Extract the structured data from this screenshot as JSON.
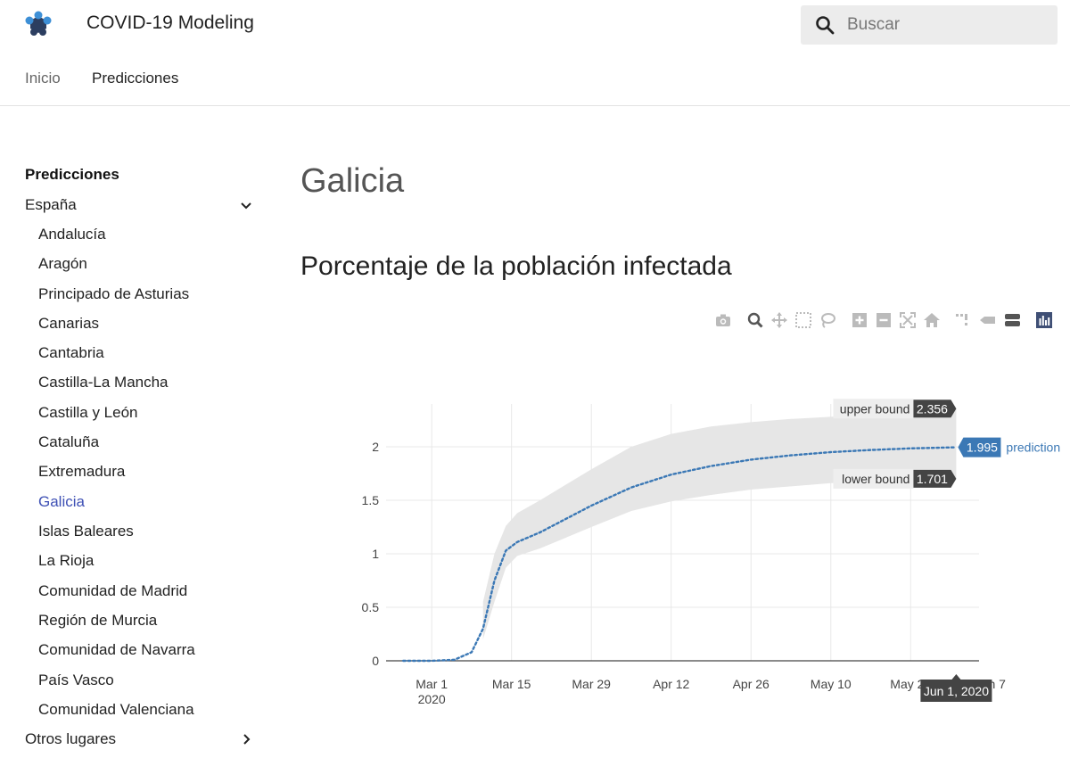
{
  "header": {
    "title": "COVID-19 Modeling",
    "search_placeholder": "Buscar",
    "tabs": [
      "Inicio",
      "Predicciones"
    ]
  },
  "sidebar": {
    "heading": "Predicciones",
    "spain": "España",
    "regions": [
      "Andalucía",
      "Aragón",
      "Principado de Asturias",
      "Canarias",
      "Cantabria",
      "Castilla-La Mancha",
      "Castilla y León",
      "Cataluña",
      "Extremadura",
      "Galicia",
      "Islas Baleares",
      "La Rioja",
      "Comunidad de Madrid",
      "Región de Murcia",
      "Comunidad de Navarra",
      "País Vasco",
      "Comunidad Valenciana"
    ],
    "active": "Galicia",
    "other": "Otros lugares"
  },
  "main": {
    "title": "Galicia",
    "section_title": "Porcentaje de la población infectada"
  },
  "modebar": {
    "buttons": [
      "camera-icon",
      "zoom-icon",
      "pan-icon",
      "box-select-icon",
      "lasso-icon",
      "zoom-in-icon",
      "zoom-out-icon",
      "autoscale-icon",
      "reset-axes-icon",
      "spike-lines-icon",
      "hover-closest-icon",
      "hover-compare-icon",
      "plotly-logo-icon"
    ]
  },
  "colors": {
    "accent": "#3f51b5",
    "prediction": "#3b78b5",
    "band": "#e6e6e6",
    "tooltip_dark": "#444444"
  },
  "chart_data": {
    "type": "line",
    "y_ticks": [
      "0",
      "0.5",
      "1",
      "1.5",
      "2"
    ],
    "x_ticks": [
      "Mar 1\n2020",
      "Mar 15",
      "Mar 29",
      "Apr 12",
      "Apr 26",
      "May 10",
      "May 24",
      "Jun 7"
    ],
    "x_range": [
      "2020-02-22",
      "2020-06-05"
    ],
    "ylim": [
      0,
      2.4
    ],
    "series": [
      {
        "name": "prediction",
        "style": "dotted",
        "x": [
          "2020-02-25",
          "2020-03-01",
          "2020-03-05",
          "2020-03-08",
          "2020-03-10",
          "2020-03-12",
          "2020-03-14",
          "2020-03-16",
          "2020-03-20",
          "2020-03-29",
          "2020-04-05",
          "2020-04-12",
          "2020-04-19",
          "2020-04-26",
          "2020-05-03",
          "2020-05-10",
          "2020-05-17",
          "2020-05-24",
          "2020-06-01"
        ],
        "y": [
          0,
          0,
          0.01,
          0.08,
          0.3,
          0.75,
          1.03,
          1.11,
          1.2,
          1.45,
          1.62,
          1.74,
          1.82,
          1.88,
          1.92,
          1.95,
          1.97,
          1.985,
          1.995
        ]
      },
      {
        "name": "upper bound",
        "x": [
          "2020-03-10",
          "2020-03-12",
          "2020-03-14",
          "2020-03-16",
          "2020-03-20",
          "2020-03-29",
          "2020-04-05",
          "2020-04-12",
          "2020-04-19",
          "2020-04-26",
          "2020-05-03",
          "2020-05-10",
          "2020-05-17",
          "2020-05-24",
          "2020-06-01"
        ],
        "y": [
          0.55,
          1.0,
          1.26,
          1.38,
          1.5,
          1.79,
          2.0,
          2.12,
          2.19,
          2.23,
          2.26,
          2.28,
          2.3,
          2.33,
          2.356
        ]
      },
      {
        "name": "lower bound",
        "x": [
          "2020-03-10",
          "2020-03-12",
          "2020-03-14",
          "2020-03-16",
          "2020-03-20",
          "2020-03-29",
          "2020-04-05",
          "2020-04-12",
          "2020-04-19",
          "2020-04-26",
          "2020-05-03",
          "2020-05-10",
          "2020-05-17",
          "2020-05-24",
          "2020-06-01"
        ],
        "y": [
          0.2,
          0.55,
          0.87,
          0.98,
          1.05,
          1.25,
          1.4,
          1.49,
          1.55,
          1.6,
          1.63,
          1.66,
          1.68,
          1.69,
          1.701
        ]
      }
    ],
    "hover": {
      "date": "Jun 1, 2020",
      "upper_label": "upper bound",
      "upper_value": "2.356",
      "pred_label": "prediction",
      "pred_value": "1.995",
      "lower_label": "lower bound",
      "lower_value": "1.701"
    },
    "grid": true
  }
}
